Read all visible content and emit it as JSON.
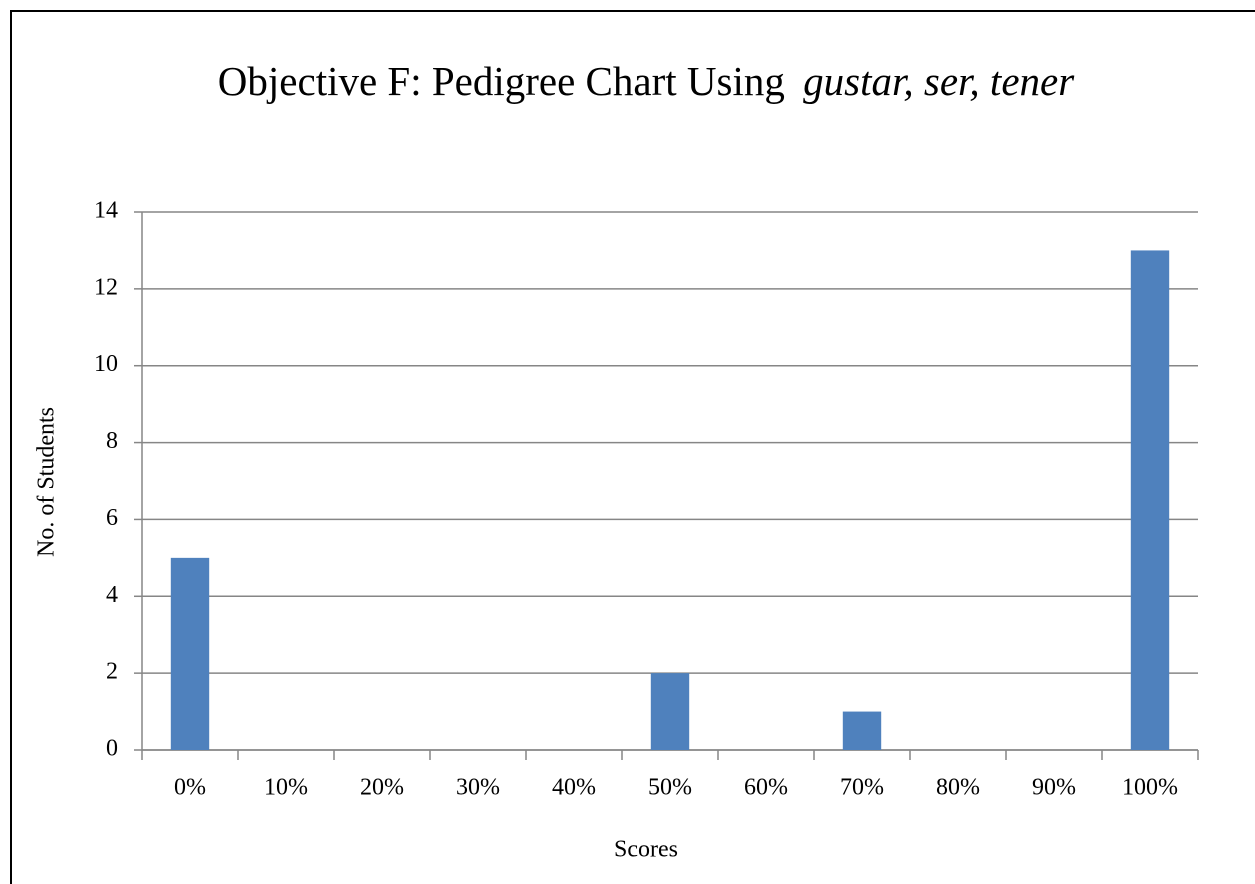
{
  "chart_data": {
    "type": "bar",
    "title": [
      "Objective F: Pedigree Chart Using",
      "gustar, ser, tener"
    ],
    "x_label": "Scores",
    "y_label": "No. of Students",
    "categories": [
      "0%",
      "10%",
      "20%",
      "30%",
      "40%",
      "50%",
      "60%",
      "70%",
      "80%",
      "90%",
      "100%"
    ],
    "values": [
      5,
      0,
      0,
      0,
      0,
      2,
      0,
      1,
      0,
      0,
      13
    ],
    "color": "#4f81bd",
    "ylim": [
      0,
      14
    ],
    "yticks": [
      0,
      2,
      4,
      6,
      8,
      10,
      12,
      14
    ],
    "grid": true
  }
}
